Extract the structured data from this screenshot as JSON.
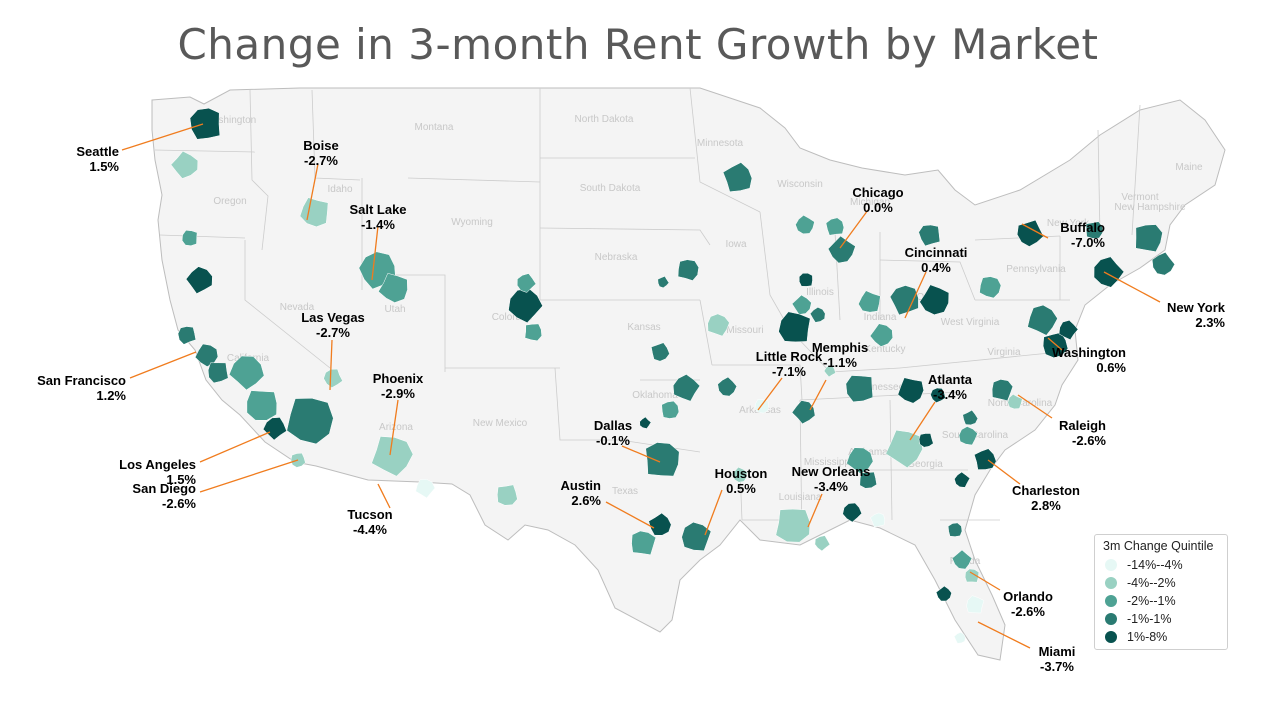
{
  "title": "Change in 3-month Rent Growth by Market",
  "legend": {
    "title": "3m Change Quintile",
    "items": [
      {
        "label": "-14%--4%",
        "color": "#e6f8f5"
      },
      {
        "label": "-4%--2%",
        "color": "#99d1c2"
      },
      {
        "label": "-2%--1%",
        "color": "#4ea294"
      },
      {
        "label": "-1%-1%",
        "color": "#2a7b72"
      },
      {
        "label": "1%-8%",
        "color": "#08524f"
      }
    ]
  },
  "colors": {
    "land": "#f4f4f4",
    "border": "#cccccc",
    "leader": "#f07c1e",
    "label": "#000000",
    "state_label": "#c8c8c8"
  },
  "state_labels": [
    "Washington",
    "Oregon",
    "Idaho",
    "Montana",
    "North Dakota",
    "South Dakota",
    "Wyoming",
    "Minnesota",
    "Wisconsin",
    "Iowa",
    "Nebraska",
    "Nevada",
    "Utah",
    "California",
    "Colorado",
    "Kansas",
    "Missouri",
    "Illinois",
    "Michigan",
    "Ohio",
    "Indiana",
    "Kentucky",
    "West Virginia",
    "Virginia",
    "Pennsylvania",
    "New York",
    "Vermont",
    "New Hampshire",
    "Maine",
    "Arizona",
    "New Mexico",
    "Oklahoma",
    "Texas",
    "Arkansas",
    "Louisiana",
    "Mississippi",
    "Alabama",
    "Georgia",
    "Tennessee",
    "North Carolina",
    "South Carolina",
    "Florida"
  ],
  "markets": [
    {
      "name": "Seattle",
      "value": "1.5%"
    },
    {
      "name": "Boise",
      "value": "-2.7%"
    },
    {
      "name": "Salt Lake",
      "value": "-1.4%"
    },
    {
      "name": "Las Vegas",
      "value": "-2.7%"
    },
    {
      "name": "San Francisco",
      "value": "1.2%"
    },
    {
      "name": "Phoenix",
      "value": "-2.9%"
    },
    {
      "name": "Los Angeles",
      "value": "1.5%"
    },
    {
      "name": "San Diego",
      "value": "-2.6%"
    },
    {
      "name": "Tucson",
      "value": "-4.4%"
    },
    {
      "name": "Chicago",
      "value": "0.0%"
    },
    {
      "name": "Cincinnati",
      "value": "0.4%"
    },
    {
      "name": "Buffalo",
      "value": "-7.0%"
    },
    {
      "name": "New York",
      "value": "2.3%"
    },
    {
      "name": "Washington",
      "value": "0.6%"
    },
    {
      "name": "Memphis",
      "value": "-1.1%"
    },
    {
      "name": "Little Rock",
      "value": "-7.1%"
    },
    {
      "name": "Atlanta",
      "value": "-3.4%"
    },
    {
      "name": "Raleigh",
      "value": "-2.6%"
    },
    {
      "name": "Dallas",
      "value": "-0.1%"
    },
    {
      "name": "Houston",
      "value": "0.5%"
    },
    {
      "name": "New Orleans",
      "value": "-3.4%"
    },
    {
      "name": "Austin",
      "value": "2.6%"
    },
    {
      "name": "Charleston",
      "value": "2.8%"
    },
    {
      "name": "Orlando",
      "value": "-2.6%"
    },
    {
      "name": "Miami",
      "value": "-3.7%"
    }
  ]
}
